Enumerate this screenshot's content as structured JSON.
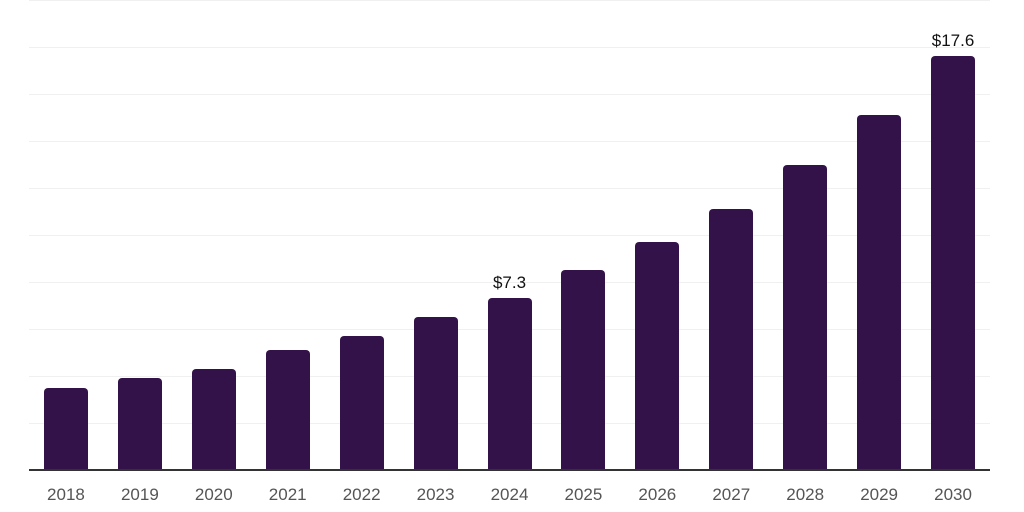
{
  "chart_data": {
    "type": "bar",
    "title": "",
    "xlabel": "",
    "ylabel": "",
    "categories": [
      "2018",
      "2019",
      "2020",
      "2021",
      "2022",
      "2023",
      "2024",
      "2025",
      "2026",
      "2027",
      "2028",
      "2029",
      "2030"
    ],
    "values": [
      3.5,
      3.9,
      4.3,
      5.1,
      5.7,
      6.5,
      7.3,
      8.5,
      9.7,
      11.1,
      13.0,
      15.1,
      17.6
    ],
    "bar_labels": [
      "",
      "",
      "",
      "",
      "",
      "",
      "$7.3",
      "",
      "",
      "",
      "",
      "",
      "$17.6"
    ],
    "ylim": [
      0,
      20
    ],
    "grid_step": 2,
    "grid": "horizontal-only",
    "legend_position": "none",
    "y_tick_labels_visible": false,
    "colors": {
      "bar": "#331249",
      "gridline": "#f0f0f0",
      "axis_line": "#333333",
      "tick_label": "#555555",
      "data_label": "#111111",
      "background": "#ffffff"
    }
  }
}
